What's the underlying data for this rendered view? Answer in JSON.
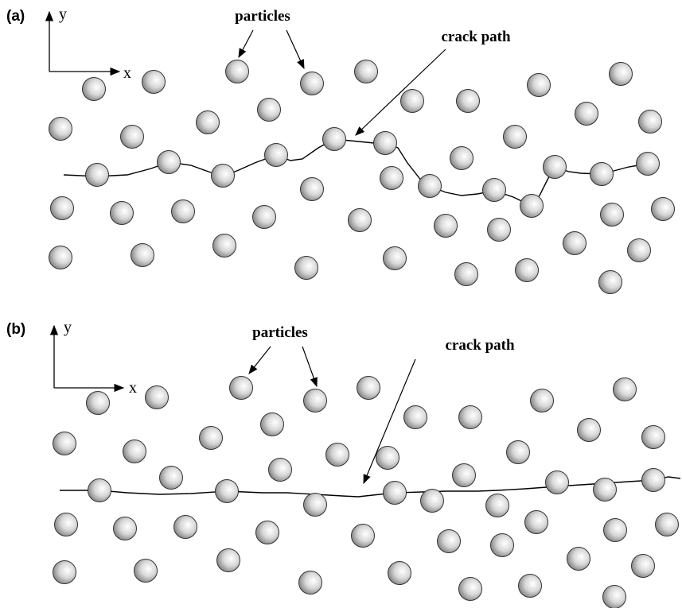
{
  "panels": [
    {
      "label": "(a)",
      "axis_y": "y",
      "axis_x": "x",
      "particles_label": "particles",
      "crack_label": "crack path"
    },
    {
      "label": "(b)",
      "axis_y": "y",
      "axis_x": "x",
      "particles_label": "particles",
      "crack_label": "crack path"
    }
  ]
}
